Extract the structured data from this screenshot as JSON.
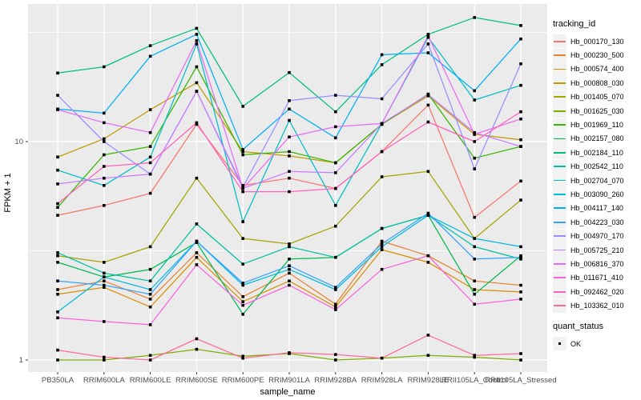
{
  "figure": {
    "panel_background": "#EBEBEB",
    "gridline_color": "#FFFFFF",
    "axis_text_color": "#4D4D4D",
    "tick_mark_color": "#333333",
    "point_color": "#000000"
  },
  "legend": {
    "tracking_id_title": "tracking_id",
    "quant_status_title": "quant_status",
    "quant_items": [
      {
        "label": "OK"
      }
    ]
  },
  "chart_data": {
    "type": "line",
    "title": "",
    "xlabel": "sample_name",
    "ylabel": "FPKM + 1",
    "y_scale": "log10",
    "y_tick_labels": [
      "10",
      "1"
    ],
    "y_tick_values": [
      10,
      1
    ],
    "y_minor_gridline_values": [
      31.62,
      3.162
    ],
    "ylim": [
      0.93,
      42.7
    ],
    "grid": "on",
    "legend_position": "right",
    "point_shape": "small black square at every vertex",
    "categories": [
      "PB350LA",
      "RRIM600LA",
      "RRIM600LE",
      "RRIM600SE",
      "RRIM600PE",
      "RRIM901LA",
      "RRIM928BA",
      "RRIM928LA",
      "RRIM928LE",
      "RRII105LA_Control",
      "RRII105LA_Stressed"
    ],
    "series": [
      {
        "name": "Hb_000170_130",
        "color": "#F8766D",
        "values": [
          4.6,
          5.1,
          5.8,
          12.0,
          6.3,
          6.8,
          6.1,
          9.0,
          14.7,
          4.5,
          6.6
        ]
      },
      {
        "name": "Hb_000230_500",
        "color": "#EA8331",
        "values": [
          2.1,
          2.3,
          1.9,
          3.1,
          1.95,
          2.5,
          1.8,
          3.5,
          3.0,
          2.3,
          2.2
        ]
      },
      {
        "name": "Hb_000574_400",
        "color": "#D89000",
        "values": [
          2.0,
          2.15,
          1.75,
          2.95,
          1.85,
          2.3,
          1.75,
          3.2,
          2.8,
          2.1,
          2.05
        ]
      },
      {
        "name": "Hb_000808_030",
        "color": "#C09B00",
        "values": [
          8.5,
          10.3,
          14.0,
          18.6,
          9.0,
          8.6,
          8.0,
          12.0,
          16.2,
          10.8,
          10.2
        ]
      },
      {
        "name": "Hb_001405_070",
        "color": "#A3A500",
        "values": [
          3.0,
          2.8,
          3.3,
          6.8,
          3.6,
          3.4,
          4.1,
          6.9,
          7.3,
          3.6,
          5.4
        ]
      },
      {
        "name": "Hb_001625_030",
        "color": "#7CAE00",
        "values": [
          1.0,
          1.0,
          1.05,
          1.12,
          1.04,
          1.07,
          1.0,
          1.02,
          1.05,
          1.03,
          1.0
        ]
      },
      {
        "name": "Hb_001969_110",
        "color": "#39B600",
        "values": [
          5.0,
          8.7,
          9.5,
          22.0,
          8.7,
          9.0,
          8.0,
          12.0,
          16.5,
          8.4,
          9.5
        ]
      },
      {
        "name": "Hb_002157_080",
        "color": "#00BB4E",
        "values": [
          2.8,
          2.4,
          2.6,
          3.45,
          1.62,
          2.9,
          2.95,
          4.0,
          4.6,
          2.0,
          3.0
        ]
      },
      {
        "name": "Hb_002184_110",
        "color": "#00BF7D",
        "values": [
          20.6,
          22.0,
          27.5,
          33.0,
          14.5,
          20.7,
          13.7,
          22.5,
          31.0,
          37.0,
          34.0
        ]
      },
      {
        "name": "Hb_002542_110",
        "color": "#00C1A3",
        "values": [
          3.1,
          2.5,
          2.3,
          4.2,
          2.75,
          3.3,
          2.95,
          4.0,
          4.6,
          3.3,
          2.9
        ]
      },
      {
        "name": "Hb_002704_070",
        "color": "#00BFC4",
        "values": [
          7.4,
          6.3,
          8.5,
          28.0,
          4.3,
          12.5,
          5.1,
          12.1,
          30.0,
          15.5,
          18.1
        ]
      },
      {
        "name": "Hb_003090_260",
        "color": "#00BAE0",
        "values": [
          1.66,
          2.4,
          2.1,
          3.5,
          2.2,
          2.6,
          2.1,
          3.3,
          4.6,
          3.6,
          3.3
        ]
      },
      {
        "name": "Hb_004117_140",
        "color": "#00B0F6",
        "values": [
          14.1,
          13.5,
          24.6,
          31.0,
          9.2,
          14.1,
          10.4,
          25.0,
          25.5,
          17.1,
          29.5
        ]
      },
      {
        "name": "Hb_004223_030",
        "color": "#35A2FF",
        "values": [
          2.3,
          2.2,
          2.0,
          3.5,
          2.25,
          2.7,
          2.15,
          3.4,
          4.7,
          2.9,
          2.95
        ]
      },
      {
        "name": "Hb_004970_170",
        "color": "#9590FF",
        "values": [
          16.3,
          10.0,
          7.1,
          17.0,
          6.2,
          15.4,
          16.3,
          15.7,
          28.0,
          7.5,
          22.7
        ]
      },
      {
        "name": "Hb_005725_210",
        "color": "#C77CFF",
        "values": [
          6.4,
          6.8,
          7.1,
          17.0,
          6.1,
          7.3,
          7.2,
          12.1,
          16.4,
          11.0,
          9.5
        ]
      },
      {
        "name": "Hb_006816_370",
        "color": "#E76BF3",
        "values": [
          14.0,
          12.2,
          11.0,
          29.0,
          6.1,
          10.5,
          11.7,
          12.1,
          30.5,
          10.8,
          12.7
        ]
      },
      {
        "name": "Hb_011671_410",
        "color": "#FA62DB",
        "values": [
          1.56,
          1.5,
          1.45,
          2.73,
          1.78,
          2.2,
          1.7,
          2.6,
          3.0,
          1.8,
          1.9
        ]
      },
      {
        "name": "Hb_092462_020",
        "color": "#FF62BC",
        "values": [
          5.2,
          7.7,
          8.0,
          12.2,
          5.9,
          5.9,
          6.1,
          9.0,
          12.3,
          10.0,
          13.7
        ]
      },
      {
        "name": "Hb_103362_010",
        "color": "#FF6A98",
        "values": [
          1.11,
          1.03,
          1.0,
          1.25,
          1.02,
          1.08,
          1.06,
          1.02,
          1.3,
          1.05,
          1.07
        ]
      }
    ]
  }
}
